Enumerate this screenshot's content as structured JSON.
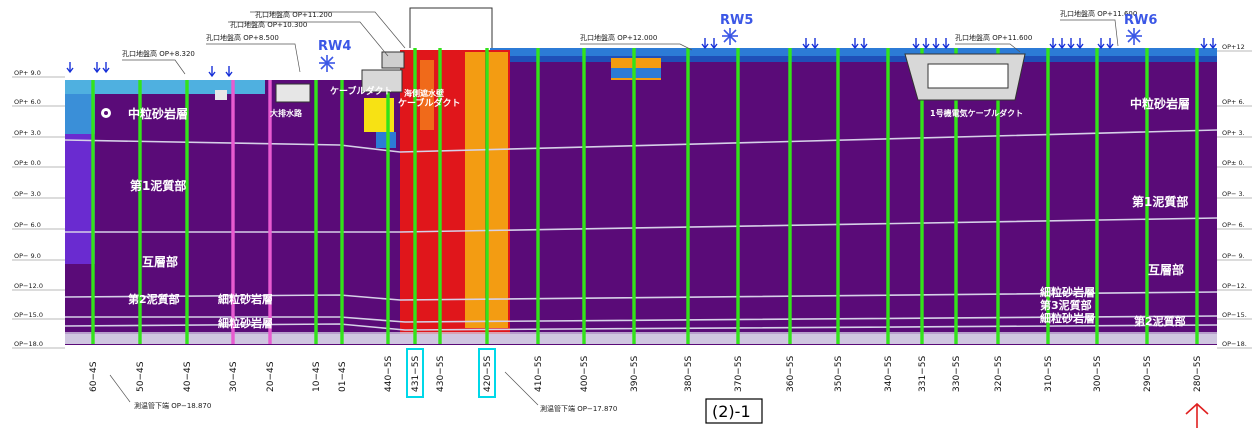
{
  "sheet_label": "(2)-1",
  "left_scale_labels": [
    "OP+ 9.0",
    "OP+ 6.0",
    "OP+ 3.0",
    "OP± 0.0",
    "OP− 3.0",
    "OP− 6.0",
    "OP− 9.0",
    "OP−12.0",
    "OP−15.0",
    "OP−18.0"
  ],
  "right_scale_labels": [
    "OP+12",
    "OP+ 6.",
    "OP+ 3.",
    "OP± 0.",
    "OP− 3.",
    "OP− 6.",
    "OP− 9.",
    "OP−12.",
    "OP−15.",
    "OP−18."
  ],
  "stations": [
    "60−4S",
    "50−4S",
    "40−4S",
    "30−4S",
    "20−4S",
    "10−4S",
    "01−4S",
    "440−5S",
    "431−5S",
    "430−5S",
    "420−5S",
    "410−5S",
    "400−5S",
    "390−5S",
    "380−5S",
    "370−5S",
    "360−5S",
    "350−5S",
    "340−5S",
    "331−5S",
    "330−5S",
    "320−5S",
    "310−5S",
    "300−5S",
    "290−5S",
    "280−5S"
  ],
  "highlighted_stations": [
    "431−5S",
    "420−5S"
  ],
  "layers": {
    "fine_sand_top_left": "中粒砂岩層",
    "fine_sand_top_right": "中粒砂岩層",
    "mud1_left": "第1泥質部",
    "mud1_right": "第1泥質部",
    "alt_left": "互層部",
    "alt_right": "互層部",
    "mud2_left": "第2泥質部",
    "fine_sand2_left": "細粒砂岩層",
    "fine_sand3_left": "細粒砂岩層",
    "mud2_right": "第2泥質部",
    "fine_sand2_right": "細粒砂岩層",
    "mud3_right": "第3泥質部",
    "fine_sand3_right": "細粒砂岩層"
  },
  "structures": {
    "cable_duct_left": "ケーブルダクト",
    "cable_duct_mid": "ケーブルダクト",
    "cable_duct_right": "1号機電気ケーブルダクト",
    "drainage": "大排水路",
    "seawall": "海側遮水壁"
  },
  "annotations": {
    "bore_top_1": "孔口地盤高 OP+11.200",
    "bore_top_2": "孔口地盤高 OP+10.300",
    "bore_top_3": "孔口地盤高 OP+8.500",
    "bore_top_4": "孔口地盤高 OP+8.320",
    "bore_top_5": "孔口地盤高 OP+12.000",
    "bore_top_6": "孔口地盤高 OP+11.600",
    "bore_top_7": "孔口地盤高 OP+11.600",
    "bottom_left": "測温管下端 OP−18.870",
    "bottom_mid": "測温管下端 OP−17.870"
  },
  "markers": {
    "rw4": "RW4",
    "rw5": "RW5",
    "rw6": "RW6"
  },
  "colors": {
    "background": "#ffffff",
    "ground_purple": "#5a0b78",
    "strata_line": "#d6d0e8",
    "sensor_green": "#33e31a",
    "sensor_pink": "#e85bd0",
    "hot_red": "#e0161b",
    "hot_orange": "#f39c12",
    "hot_yellow": "#f7e214",
    "cool_blue": "#2c7bd6",
    "highlight_cyan": "#00d8e8",
    "arrow_blue": "#1730d8",
    "arrow_red": "#e02020"
  }
}
